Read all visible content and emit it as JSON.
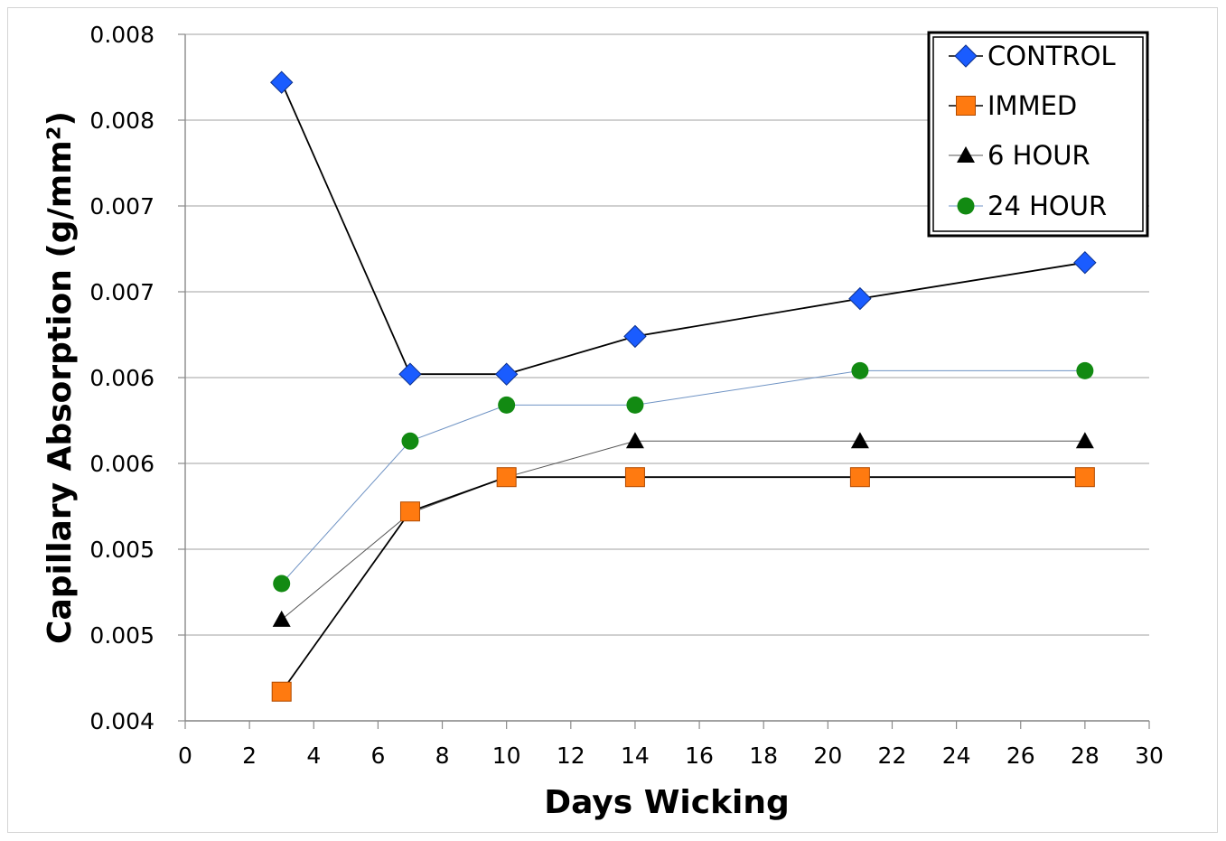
{
  "chart_data": {
    "type": "line",
    "title": "",
    "xlabel": "Days Wicking",
    "ylabel": "Capillary Absorption (g/mm²)",
    "xlim": [
      0,
      30
    ],
    "ylim": [
      0.004,
      0.008
    ],
    "x_ticks": [
      0,
      2,
      4,
      6,
      8,
      10,
      12,
      14,
      16,
      18,
      20,
      22,
      24,
      26,
      28,
      30
    ],
    "x_tick_labels": [
      "0",
      "2",
      "4",
      "6",
      "8",
      "10",
      "12",
      "14",
      "16",
      "18",
      "20",
      "22",
      "24",
      "26",
      "28",
      "30"
    ],
    "y_ticks": [
      0.004,
      0.0045,
      0.005,
      0.0055,
      0.006,
      0.0065,
      0.007,
      0.0075,
      0.008
    ],
    "y_tick_labels": [
      "0.004",
      "0.005",
      "0.005",
      "0.006",
      "0.006",
      "0.007",
      "0.007",
      "0.008",
      "0.008"
    ],
    "grid": "horizontal",
    "legend_position": "top-right",
    "x": [
      3,
      7,
      10,
      14,
      21,
      28
    ],
    "series": [
      {
        "name": "CONTROL",
        "marker": "diamond",
        "marker_color": "#1a5cff",
        "line_color": "#000000",
        "line_width": 1.8,
        "values": [
          0.00772,
          0.00602,
          0.00602,
          0.00624,
          0.00646,
          0.00667
        ]
      },
      {
        "name": "IMMED",
        "marker": "square",
        "marker_color": "#ff7a10",
        "line_color": "#000000",
        "line_width": 1.8,
        "values": [
          0.00417,
          0.00522,
          0.00542,
          0.00542,
          0.00542,
          0.00542
        ]
      },
      {
        "name": "6 HOUR",
        "marker": "triangle",
        "marker_color": "#000000",
        "line_color": "#555555",
        "line_width": 1.0,
        "values": [
          0.00459,
          0.00521,
          0.00542,
          0.00563,
          0.00563,
          0.00563
        ]
      },
      {
        "name": "24 HOUR",
        "marker": "circle",
        "marker_color": "#128a12",
        "line_color": "#6f93c4",
        "line_width": 1.0,
        "values": [
          0.0048,
          0.00563,
          0.00584,
          0.00584,
          0.00604,
          0.00604
        ]
      }
    ]
  }
}
